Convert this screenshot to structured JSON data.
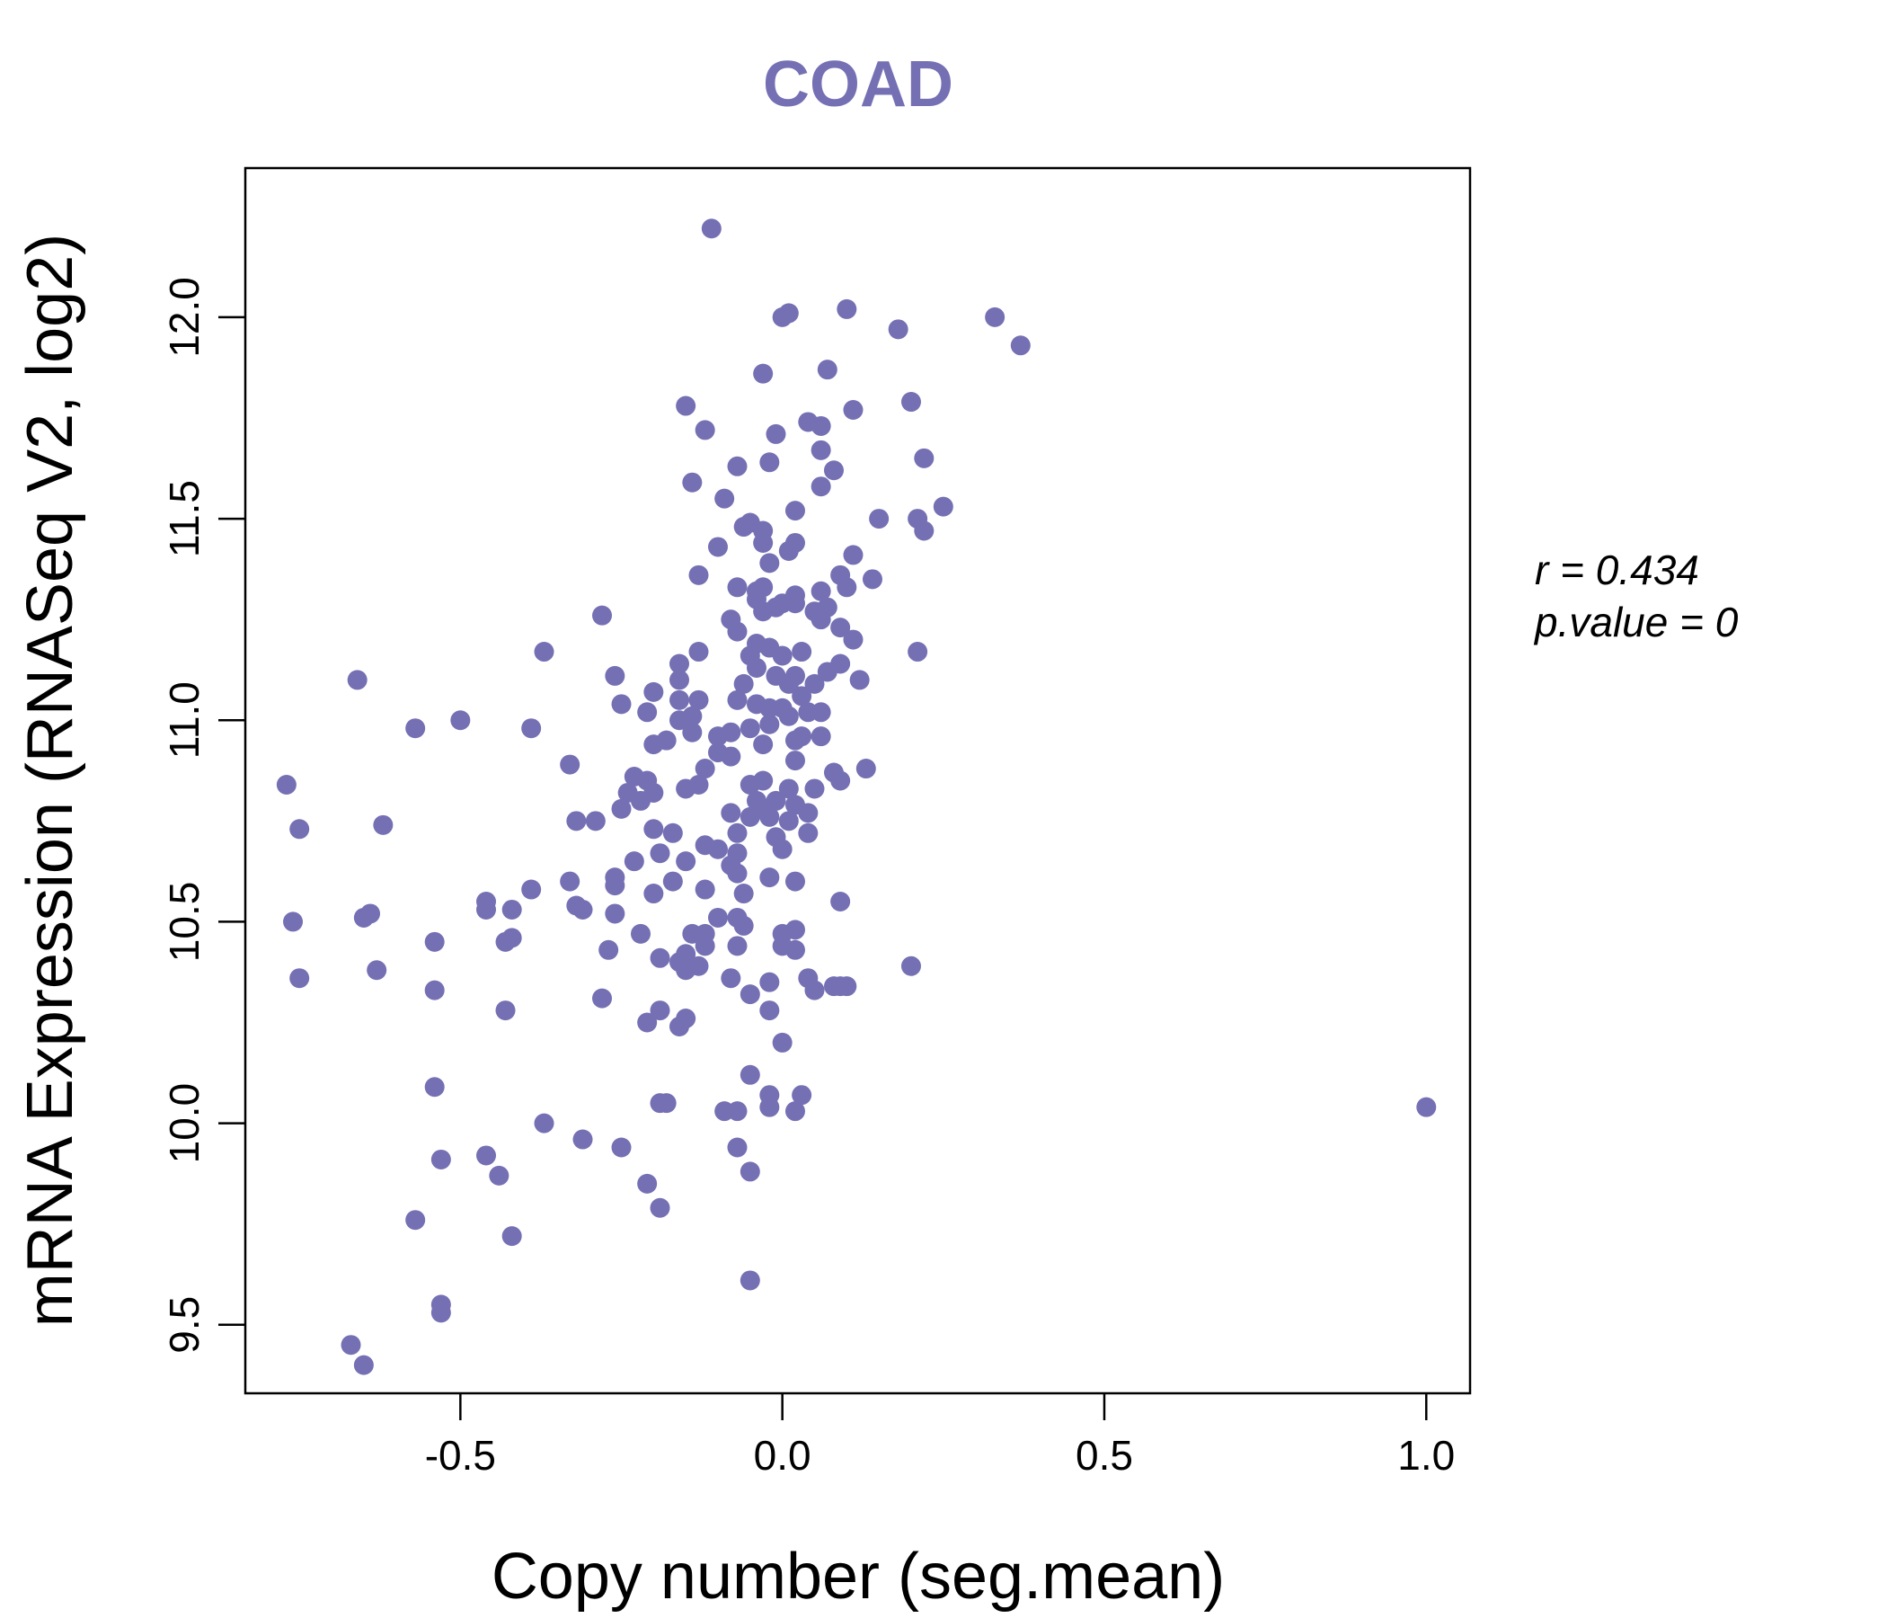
{
  "chart_data": {
    "type": "scatter",
    "title": "COAD",
    "xlabel": "Copy number (seg.mean)",
    "ylabel": "mRNA Expression (RNASeq V2, log2)",
    "xlim": [
      -0.834,
      1.068
    ],
    "ylim": [
      9.33,
      12.37
    ],
    "x_ticks": [
      "-0.5",
      "0.0",
      "0.5",
      "1.0"
    ],
    "y_ticks": [
      "9.5",
      "10.0",
      "10.5",
      "11.0",
      "11.5",
      "12.0"
    ],
    "point_color": "#7570b3",
    "grid": false,
    "legend": "none",
    "annotations": {
      "r": "r = 0.434",
      "p": "p.value = 0"
    },
    "points": [
      [
        -0.11,
        12.22
      ],
      [
        0.0,
        12.0
      ],
      [
        0.01,
        12.01
      ],
      [
        0.1,
        12.02
      ],
      [
        0.33,
        12.0
      ],
      [
        0.37,
        11.93
      ],
      [
        0.18,
        11.97
      ],
      [
        0.07,
        11.87
      ],
      [
        -0.03,
        11.86
      ],
      [
        0.2,
        11.79
      ],
      [
        0.11,
        11.77
      ],
      [
        -0.15,
        11.78
      ],
      [
        0.04,
        11.74
      ],
      [
        0.06,
        11.73
      ],
      [
        -0.12,
        11.72
      ],
      [
        -0.01,
        11.71
      ],
      [
        0.06,
        11.67
      ],
      [
        0.22,
        11.65
      ],
      [
        -0.02,
        11.64
      ],
      [
        -0.07,
        11.63
      ],
      [
        0.08,
        11.62
      ],
      [
        -0.14,
        11.59
      ],
      [
        0.06,
        11.58
      ],
      [
        -0.09,
        11.55
      ],
      [
        0.25,
        11.53
      ],
      [
        0.02,
        11.52
      ],
      [
        0.15,
        11.5
      ],
      [
        0.21,
        11.5
      ],
      [
        -0.06,
        11.48
      ],
      [
        -0.05,
        11.49
      ],
      [
        -0.03,
        11.47
      ],
      [
        0.22,
        11.47
      ],
      [
        -0.03,
        11.44
      ],
      [
        0.02,
        11.44
      ],
      [
        -0.1,
        11.43
      ],
      [
        0.01,
        11.42
      ],
      [
        0.11,
        11.41
      ],
      [
        -0.02,
        11.39
      ],
      [
        0.09,
        11.36
      ],
      [
        0.14,
        11.35
      ],
      [
        -0.13,
        11.36
      ],
      [
        0.1,
        11.33
      ],
      [
        -0.07,
        11.33
      ],
      [
        -0.04,
        11.32
      ],
      [
        -0.03,
        11.33
      ],
      [
        0.06,
        11.32
      ],
      [
        0.02,
        11.31
      ],
      [
        -0.04,
        11.3
      ],
      [
        0.0,
        11.29
      ],
      [
        -0.01,
        11.28
      ],
      [
        0.02,
        11.29
      ],
      [
        -0.03,
        11.27
      ],
      [
        0.07,
        11.28
      ],
      [
        0.05,
        11.27
      ],
      [
        -0.28,
        11.26
      ],
      [
        -0.08,
        11.25
      ],
      [
        0.06,
        11.25
      ],
      [
        0.09,
        11.23
      ],
      [
        0.11,
        11.2
      ],
      [
        -0.07,
        11.22
      ],
      [
        -0.04,
        11.19
      ],
      [
        -0.02,
        11.18
      ],
      [
        0.21,
        11.17
      ],
      [
        -0.37,
        11.17
      ],
      [
        -0.13,
        11.17
      ],
      [
        0.03,
        11.17
      ],
      [
        0.0,
        11.16
      ],
      [
        -0.05,
        11.16
      ],
      [
        -0.16,
        11.14
      ],
      [
        0.09,
        11.14
      ],
      [
        -0.04,
        11.13
      ],
      [
        -0.01,
        11.11
      ],
      [
        0.02,
        11.11
      ],
      [
        0.07,
        11.12
      ],
      [
        -0.26,
        11.11
      ],
      [
        0.12,
        11.1
      ],
      [
        -0.16,
        11.1
      ],
      [
        -0.06,
        11.09
      ],
      [
        0.01,
        11.09
      ],
      [
        0.05,
        11.09
      ],
      [
        -0.2,
        11.07
      ],
      [
        -0.13,
        11.05
      ],
      [
        0.03,
        11.06
      ],
      [
        -0.07,
        11.05
      ],
      [
        -0.16,
        11.05
      ],
      [
        -0.04,
        11.04
      ],
      [
        -0.02,
        11.03
      ],
      [
        0.0,
        11.03
      ],
      [
        -0.25,
        11.04
      ],
      [
        -0.21,
        11.02
      ],
      [
        0.06,
        11.02
      ],
      [
        0.04,
        11.02
      ],
      [
        -0.14,
        11.01
      ],
      [
        0.01,
        11.01
      ],
      [
        -0.16,
        11.0
      ],
      [
        -0.02,
        10.99
      ],
      [
        -0.05,
        10.98
      ],
      [
        -0.14,
        10.97
      ],
      [
        -0.08,
        10.97
      ],
      [
        -0.57,
        10.98
      ],
      [
        -0.39,
        10.98
      ],
      [
        -0.5,
        11.0
      ],
      [
        -0.66,
        11.1
      ],
      [
        -0.1,
        10.96
      ],
      [
        0.03,
        10.96
      ],
      [
        0.06,
        10.96
      ],
      [
        0.02,
        10.95
      ],
      [
        -0.18,
        10.95
      ],
      [
        -0.2,
        10.94
      ],
      [
        -0.03,
        10.94
      ],
      [
        -0.1,
        10.92
      ],
      [
        -0.08,
        10.91
      ],
      [
        0.02,
        10.9
      ],
      [
        -0.33,
        10.89
      ],
      [
        -0.12,
        10.88
      ],
      [
        0.08,
        10.87
      ],
      [
        0.13,
        10.88
      ],
      [
        -0.23,
        10.86
      ],
      [
        -0.21,
        10.85
      ],
      [
        -0.03,
        10.85
      ],
      [
        -0.05,
        10.84
      ],
      [
        0.01,
        10.83
      ],
      [
        -0.15,
        10.83
      ],
      [
        -0.24,
        10.82
      ],
      [
        0.05,
        10.83
      ],
      [
        -0.13,
        10.84
      ],
      [
        0.09,
        10.85
      ],
      [
        -0.2,
        10.82
      ],
      [
        -0.22,
        10.8
      ],
      [
        -0.04,
        10.8
      ],
      [
        -0.01,
        10.8
      ],
      [
        0.02,
        10.79
      ],
      [
        -0.25,
        10.78
      ],
      [
        -0.03,
        10.78
      ],
      [
        0.04,
        10.77
      ],
      [
        -0.08,
        10.77
      ],
      [
        -0.05,
        10.76
      ],
      [
        -0.02,
        10.76
      ],
      [
        0.01,
        10.75
      ],
      [
        -0.29,
        10.75
      ],
      [
        -0.32,
        10.75
      ],
      [
        -0.62,
        10.74
      ],
      [
        -0.75,
        10.73
      ],
      [
        -0.2,
        10.73
      ],
      [
        -0.17,
        10.72
      ],
      [
        0.04,
        10.72
      ],
      [
        -0.07,
        10.72
      ],
      [
        -0.01,
        10.71
      ],
      [
        -0.12,
        10.69
      ],
      [
        -0.1,
        10.68
      ],
      [
        0.0,
        10.68
      ],
      [
        -0.19,
        10.67
      ],
      [
        -0.07,
        10.67
      ],
      [
        -0.15,
        10.65
      ],
      [
        -0.23,
        10.65
      ],
      [
        -0.08,
        10.64
      ],
      [
        -0.07,
        10.62
      ],
      [
        -0.26,
        10.61
      ],
      [
        -0.02,
        10.61
      ],
      [
        0.02,
        10.6
      ],
      [
        -0.33,
        10.6
      ],
      [
        -0.17,
        10.6
      ],
      [
        -0.26,
        10.59
      ],
      [
        -0.12,
        10.58
      ],
      [
        -0.39,
        10.58
      ],
      [
        -0.2,
        10.57
      ],
      [
        -0.06,
        10.57
      ],
      [
        0.09,
        10.55
      ],
      [
        -0.46,
        10.55
      ],
      [
        -0.46,
        10.53
      ],
      [
        -0.42,
        10.53
      ],
      [
        -0.31,
        10.53
      ],
      [
        -0.26,
        10.52
      ],
      [
        -0.32,
        10.54
      ],
      [
        -0.64,
        10.52
      ],
      [
        -0.65,
        10.51
      ],
      [
        -0.76,
        10.5
      ],
      [
        -0.1,
        10.51
      ],
      [
        -0.07,
        10.51
      ],
      [
        -0.06,
        10.49
      ],
      [
        0.02,
        10.48
      ],
      [
        -0.14,
        10.47
      ],
      [
        -0.12,
        10.47
      ],
      [
        0.0,
        10.47
      ],
      [
        -0.22,
        10.47
      ],
      [
        -0.42,
        10.46
      ],
      [
        -0.43,
        10.45
      ],
      [
        -0.54,
        10.45
      ],
      [
        -0.12,
        10.44
      ],
      [
        -0.07,
        10.44
      ],
      [
        0.0,
        10.44
      ],
      [
        0.02,
        10.43
      ],
      [
        -0.27,
        10.43
      ],
      [
        -0.15,
        10.42
      ],
      [
        -0.19,
        10.41
      ],
      [
        -0.16,
        10.4
      ],
      [
        -0.13,
        10.39
      ],
      [
        -0.15,
        10.38
      ],
      [
        0.2,
        10.39
      ],
      [
        -0.63,
        10.38
      ],
      [
        -0.75,
        10.36
      ],
      [
        -0.08,
        10.36
      ],
      [
        -0.02,
        10.35
      ],
      [
        0.04,
        10.36
      ],
      [
        0.08,
        10.34
      ],
      [
        0.1,
        10.34
      ],
      [
        0.09,
        10.34
      ],
      [
        0.05,
        10.33
      ],
      [
        -0.54,
        10.33
      ],
      [
        -0.05,
        10.32
      ],
      [
        -0.28,
        10.31
      ],
      [
        -0.43,
        10.28
      ],
      [
        -0.02,
        10.28
      ],
      [
        -0.19,
        10.28
      ],
      [
        -0.15,
        10.26
      ],
      [
        -0.21,
        10.25
      ],
      [
        -0.16,
        10.24
      ],
      [
        0.0,
        10.2
      ],
      [
        -0.05,
        10.12
      ],
      [
        -0.54,
        10.09
      ],
      [
        -0.02,
        10.07
      ],
      [
        0.03,
        10.07
      ],
      [
        -0.19,
        10.05
      ],
      [
        -0.18,
        10.05
      ],
      [
        -0.02,
        10.04
      ],
      [
        0.02,
        10.03
      ],
      [
        -0.09,
        10.03
      ],
      [
        -0.07,
        10.03
      ],
      [
        -0.37,
        10.0
      ],
      [
        -0.31,
        9.96
      ],
      [
        -0.25,
        9.94
      ],
      [
        -0.07,
        9.94
      ],
      [
        -0.53,
        9.91
      ],
      [
        -0.46,
        9.92
      ],
      [
        -0.44,
        9.87
      ],
      [
        -0.05,
        9.88
      ],
      [
        -0.21,
        9.85
      ],
      [
        -0.19,
        9.79
      ],
      [
        -0.57,
        9.76
      ],
      [
        -0.42,
        9.72
      ],
      [
        -0.05,
        9.61
      ],
      [
        -0.53,
        9.55
      ],
      [
        -0.53,
        9.53
      ],
      [
        -0.67,
        9.45
      ],
      [
        -0.65,
        9.4
      ],
      [
        -0.77,
        10.84
      ],
      [
        1.0,
        10.04
      ]
    ]
  }
}
